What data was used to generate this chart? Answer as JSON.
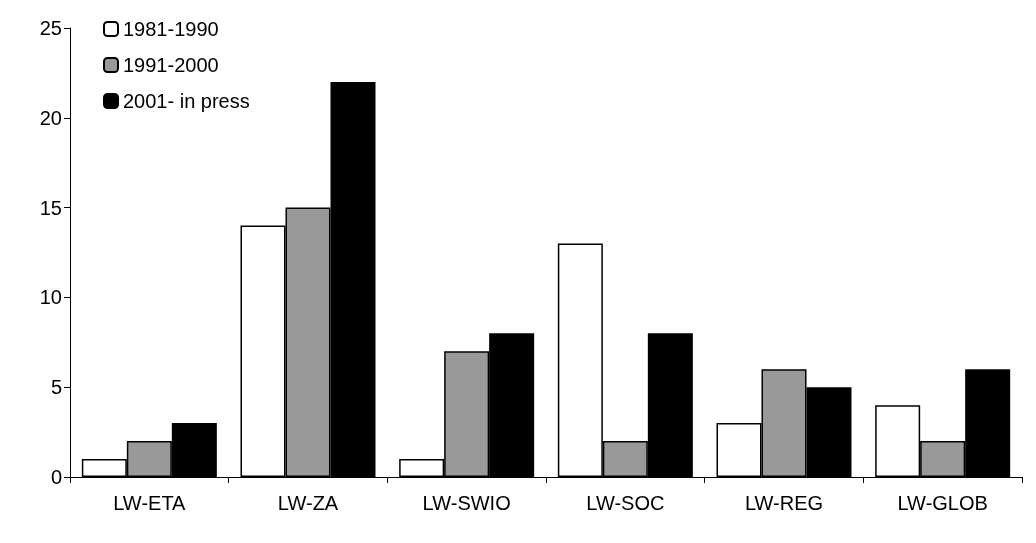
{
  "chart_data": {
    "type": "bar",
    "categories": [
      "LW-ETA",
      "LW-ZA",
      "LW-SWIO",
      "LW-SOC",
      "LW-REG",
      "LW-GLOB"
    ],
    "series": [
      {
        "name": "1981-1990",
        "color": "#ffffff",
        "values": [
          1,
          14,
          1,
          13,
          3,
          4
        ]
      },
      {
        "name": "1991-2000",
        "color": "#999999",
        "values": [
          2,
          15,
          7,
          2,
          6,
          2
        ]
      },
      {
        "name": "2001- in press",
        "color": "#000000",
        "values": [
          3,
          22,
          8,
          8,
          5,
          6
        ]
      }
    ],
    "ylim": [
      0,
      25
    ],
    "yticks": [
      0,
      5,
      10,
      15,
      20,
      25
    ],
    "grid": false,
    "legend": "top left"
  }
}
